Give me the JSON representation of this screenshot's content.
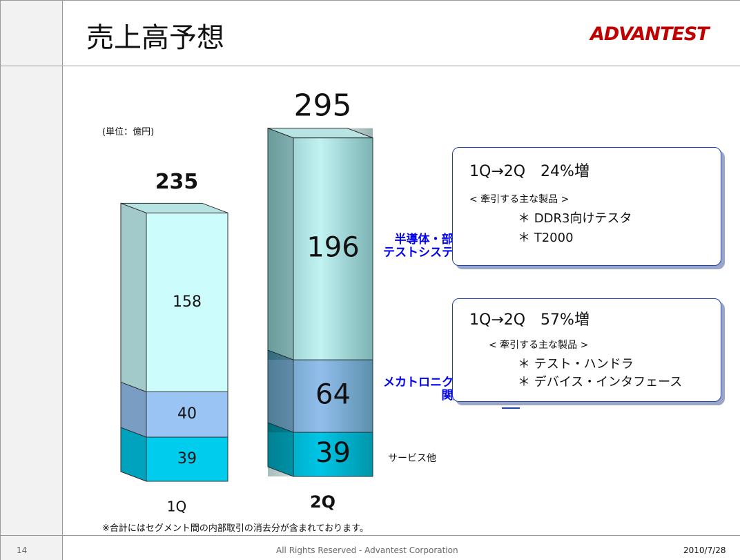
{
  "header": {
    "title": "売上高予想",
    "logo": "ADVANTEST"
  },
  "chart_data": {
    "type": "bar",
    "stacked": true,
    "unit_label": "(単位：億円)",
    "categories": [
      "1Q",
      "2Q"
    ],
    "series": [
      {
        "name": "サービス他",
        "color": "#00ccee",
        "values": [
          39,
          39
        ]
      },
      {
        "name": "メカトロニクス\n関連",
        "color": "#99c4f4",
        "values": [
          40,
          64
        ]
      },
      {
        "name": "半導体・部品\nテストシステム",
        "color": "#ccfcfc",
        "values": [
          158,
          196
        ]
      }
    ],
    "totals": [
      235,
      295
    ]
  },
  "callouts": [
    {
      "heading": "1Q→2Q　24%増",
      "sub": "< 牽引する主な製品 >",
      "items": [
        "＊ DDR3向けテスタ",
        "＊ T2000"
      ]
    },
    {
      "heading": "1Q→2Q　57%増",
      "sub": "< 牽引する主な製品 >",
      "items": [
        "＊ テスト・ハンドラ",
        "＊ デバイス・インタフェース"
      ]
    }
  ],
  "footnote": "※合計にはセグメント間の内部取引の消去分が含まれております。",
  "footer": {
    "page": "14",
    "copyright": "All Rights Reserved - Advantest Corporation",
    "date": "2010/7/28"
  }
}
